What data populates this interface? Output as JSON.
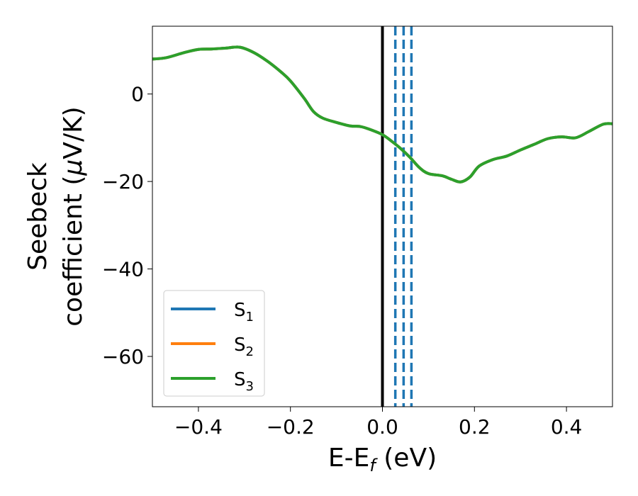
{
  "chart_data": {
    "type": "line",
    "xlabel": "E-E",
    "xlabel_sub": "f",
    "xlabel_unit": " (eV)",
    "ylabel_line1": "Seebeck",
    "ylabel_line2": "coefficient  (",
    "ylabel_mu": "μ",
    "ylabel_unit": "V/K)",
    "xlim": [
      -0.5,
      0.5
    ],
    "ylim": [
      -71.5,
      15.5
    ],
    "x_ticks": [
      -0.4,
      -0.2,
      0.0,
      0.2,
      0.4
    ],
    "x_tick_labels": [
      "−0.4",
      "−0.2",
      "0.0",
      "0.2",
      "0.4"
    ],
    "y_ticks": [
      0,
      -20,
      -40,
      -60
    ],
    "y_tick_labels": [
      "0",
      "−20",
      "−40",
      "−60"
    ],
    "legend_position": "lower-left",
    "vertical_lines": [
      {
        "x": 0.0,
        "style": "solid",
        "color": "#000000"
      },
      {
        "x": 0.028,
        "style": "dashed",
        "color": "#1f77b4"
      },
      {
        "x": 0.046,
        "style": "dashed",
        "color": "#1f77b4"
      },
      {
        "x": 0.063,
        "style": "dashed",
        "color": "#1f77b4"
      }
    ],
    "series": [
      {
        "name": "S",
        "sub": "1",
        "color": "#1f77b4",
        "x": [
          -0.5,
          -0.47,
          -0.43,
          -0.4,
          -0.37,
          -0.34,
          -0.31,
          -0.28,
          -0.25,
          -0.22,
          -0.2,
          -0.17,
          -0.15,
          -0.13,
          -0.1,
          -0.07,
          -0.05,
          -0.03,
          0.0,
          0.02,
          0.04,
          0.06,
          0.08,
          0.1,
          0.13,
          0.15,
          0.17,
          0.19,
          0.21,
          0.24,
          0.27,
          0.3,
          0.33,
          0.36,
          0.39,
          0.42,
          0.45,
          0.48,
          0.5
        ],
        "y": [
          8.0,
          8.3,
          9.5,
          10.2,
          10.3,
          10.5,
          10.7,
          9.5,
          7.5,
          5.0,
          3.0,
          -1.0,
          -4.0,
          -5.5,
          -6.5,
          -7.3,
          -7.4,
          -8.0,
          -9.3,
          -10.8,
          -12.5,
          -14.5,
          -16.8,
          -18.2,
          -18.7,
          -19.5,
          -20.1,
          -19.0,
          -16.5,
          -15.0,
          -14.2,
          -12.8,
          -11.5,
          -10.2,
          -9.8,
          -10.0,
          -8.5,
          -6.9,
          -6.8
        ]
      },
      {
        "name": "S",
        "sub": "2",
        "color": "#ff7f0e",
        "x": [
          -0.5,
          -0.47,
          -0.43,
          -0.4,
          -0.37,
          -0.34,
          -0.31,
          -0.28,
          -0.25,
          -0.22,
          -0.2,
          -0.17,
          -0.15,
          -0.13,
          -0.1,
          -0.07,
          -0.05,
          -0.03,
          0.0,
          0.02,
          0.04,
          0.06,
          0.08,
          0.1,
          0.13,
          0.15,
          0.17,
          0.19,
          0.21,
          0.24,
          0.27,
          0.3,
          0.33,
          0.36,
          0.39,
          0.42,
          0.45,
          0.48,
          0.5
        ],
        "y": [
          8.0,
          8.3,
          9.5,
          10.2,
          10.3,
          10.5,
          10.7,
          9.5,
          7.5,
          5.0,
          3.0,
          -1.0,
          -4.0,
          -5.5,
          -6.5,
          -7.3,
          -7.4,
          -8.0,
          -9.3,
          -10.8,
          -12.5,
          -14.5,
          -16.8,
          -18.2,
          -18.7,
          -19.5,
          -20.1,
          -19.0,
          -16.5,
          -15.0,
          -14.2,
          -12.8,
          -11.5,
          -10.2,
          -9.8,
          -10.0,
          -8.5,
          -6.9,
          -6.8
        ]
      },
      {
        "name": "S",
        "sub": "3",
        "color": "#2ca02c",
        "x": [
          -0.5,
          -0.47,
          -0.43,
          -0.4,
          -0.37,
          -0.34,
          -0.31,
          -0.28,
          -0.25,
          -0.22,
          -0.2,
          -0.17,
          -0.15,
          -0.13,
          -0.1,
          -0.07,
          -0.05,
          -0.03,
          0.0,
          0.02,
          0.04,
          0.06,
          0.08,
          0.1,
          0.13,
          0.15,
          0.17,
          0.19,
          0.21,
          0.24,
          0.27,
          0.3,
          0.33,
          0.36,
          0.39,
          0.42,
          0.45,
          0.48,
          0.5
        ],
        "y": [
          8.0,
          8.3,
          9.5,
          10.2,
          10.3,
          10.5,
          10.7,
          9.5,
          7.5,
          5.0,
          3.0,
          -1.0,
          -4.0,
          -5.5,
          -6.5,
          -7.3,
          -7.4,
          -8.0,
          -9.3,
          -10.8,
          -12.5,
          -14.5,
          -16.8,
          -18.2,
          -18.7,
          -19.5,
          -20.1,
          -19.0,
          -16.5,
          -15.0,
          -14.2,
          -12.8,
          -11.5,
          -10.2,
          -9.8,
          -10.0,
          -8.5,
          -6.9,
          -6.8
        ]
      }
    ]
  }
}
